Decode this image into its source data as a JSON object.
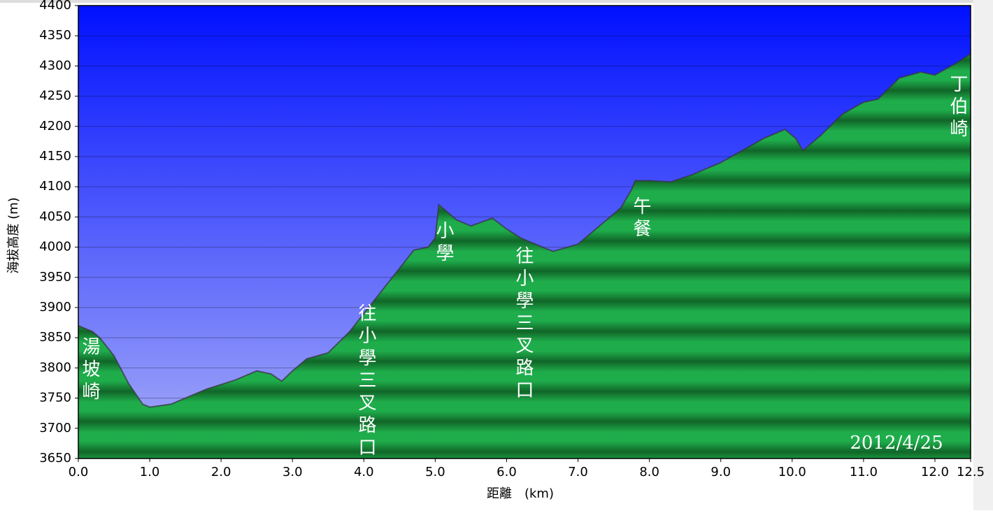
{
  "chart_data": {
    "type": "area",
    "x_label": "距離　(km)",
    "y_label": "海拔高度 (m)",
    "date": "2012/4/25",
    "x": [
      0,
      0.2,
      0.3,
      0.5,
      0.7,
      0.9,
      1.0,
      1.3,
      1.5,
      1.8,
      2.2,
      2.5,
      2.7,
      2.85,
      3.0,
      3.2,
      3.5,
      3.8,
      4.0,
      4.2,
      4.5,
      4.7,
      4.9,
      5.0,
      5.05,
      5.3,
      5.5,
      5.8,
      6.0,
      6.2,
      6.5,
      6.65,
      7.0,
      7.3,
      7.6,
      7.75,
      7.8,
      8.0,
      8.3,
      8.6,
      9.0,
      9.3,
      9.6,
      9.9,
      10.05,
      10.15,
      10.4,
      10.7,
      11.0,
      11.2,
      11.5,
      11.8,
      12.0,
      12.3,
      12.5
    ],
    "series": [
      {
        "color": "#1fa84a",
        "values": [
          3870,
          3860,
          3850,
          3820,
          3775,
          3740,
          3735,
          3740,
          3750,
          3765,
          3780,
          3795,
          3790,
          3778,
          3795,
          3815,
          3825,
          3860,
          3890,
          3920,
          3965,
          3995,
          4000,
          4015,
          4070,
          4045,
          4035,
          4048,
          4030,
          4015,
          4000,
          3993,
          4005,
          4035,
          4065,
          4095,
          4110,
          4110,
          4108,
          4120,
          4140,
          4160,
          4180,
          4195,
          4180,
          4160,
          4185,
          4220,
          4240,
          4245,
          4280,
          4290,
          4285,
          4305,
          4320
        ]
      }
    ],
    "annotations": [
      "湯坡崎",
      "往小學三叉路口",
      "小學",
      "往小學三叉路口",
      "午餐",
      "丁伯崎"
    ],
    "xlim": [
      0,
      12.5
    ],
    "ylim": [
      3650,
      4400
    ],
    "xticks": [
      {
        "value": 0,
        "label": "0.0"
      },
      {
        "value": 1,
        "label": "1.0"
      },
      {
        "value": 2,
        "label": "2.0"
      },
      {
        "value": 3,
        "label": "3.0"
      },
      {
        "value": 4,
        "label": "4.0"
      },
      {
        "value": 5,
        "label": "5.0"
      },
      {
        "value": 6,
        "label": "6.0"
      },
      {
        "value": 7,
        "label": "7.0"
      },
      {
        "value": 8,
        "label": "8.0"
      },
      {
        "value": 9,
        "label": "9.0"
      },
      {
        "value": 10,
        "label": "10.0"
      },
      {
        "value": 11,
        "label": "11.0"
      },
      {
        "value": 12,
        "label": "12.0"
      },
      12.5
    ],
    "yticks": [
      3650,
      3700,
      3750,
      3800,
      3850,
      3900,
      3950,
      4000,
      4050,
      4100,
      4150,
      4200,
      4250,
      4300,
      4350,
      4400
    ],
    "grid": true
  }
}
